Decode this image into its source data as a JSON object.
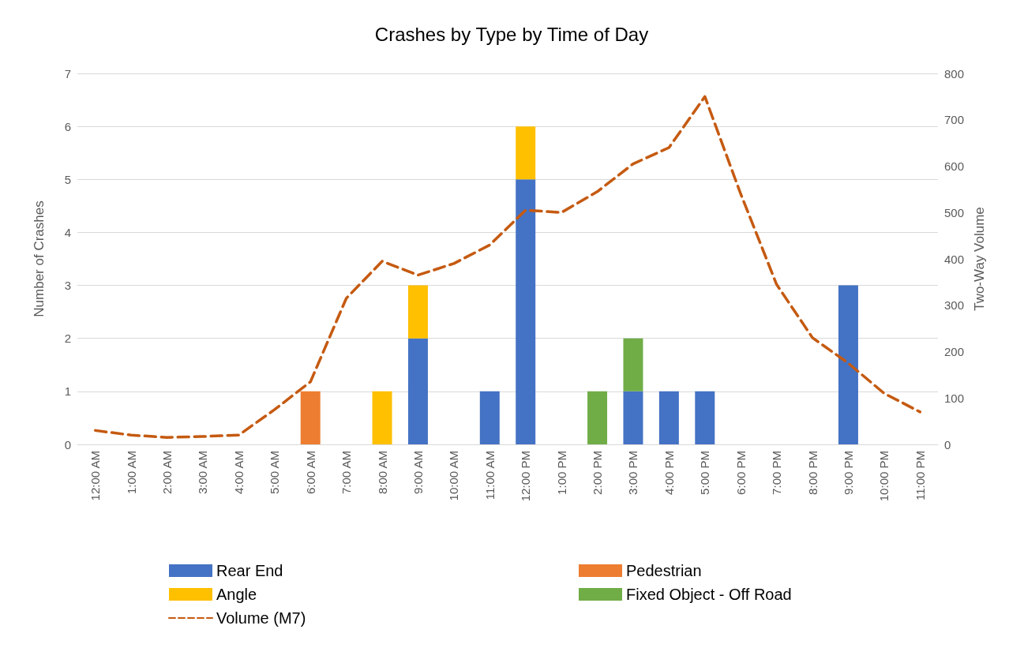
{
  "chart_data": {
    "type": "bar",
    "title": "Crashes by Type by Time of Day",
    "ylabel": "Number of Crashes",
    "y2label": "Two-Way Volume",
    "categories": [
      "12:00 AM",
      "1:00 AM",
      "2:00 AM",
      "3:00 AM",
      "4:00 AM",
      "5:00 AM",
      "6:00 AM",
      "7:00 AM",
      "8:00 AM",
      "9:00 AM",
      "10:00 AM",
      "11:00 AM",
      "12:00 PM",
      "1:00 PM",
      "2:00 PM",
      "3:00 PM",
      "4:00 PM",
      "5:00 PM",
      "6:00 PM",
      "7:00 PM",
      "8:00 PM",
      "9:00 PM",
      "10:00 PM",
      "11:00 PM"
    ],
    "stacked": true,
    "series": [
      {
        "name": "Rear End",
        "color": "#4472c4",
        "values": [
          null,
          null,
          null,
          null,
          null,
          null,
          null,
          null,
          null,
          2,
          null,
          1,
          5,
          null,
          null,
          1,
          1,
          1,
          null,
          null,
          null,
          3,
          null,
          null
        ]
      },
      {
        "name": "Pedestrian",
        "color": "#ed7d31",
        "values": [
          null,
          null,
          null,
          null,
          null,
          null,
          1,
          null,
          null,
          null,
          null,
          null,
          null,
          null,
          null,
          null,
          null,
          null,
          null,
          null,
          null,
          null,
          null,
          null
        ]
      },
      {
        "name": "Angle",
        "color": "#ffc000",
        "values": [
          null,
          null,
          null,
          null,
          null,
          null,
          null,
          null,
          1,
          1,
          null,
          null,
          1,
          null,
          null,
          null,
          null,
          null,
          null,
          null,
          null,
          null,
          null,
          null
        ]
      },
      {
        "name": "Fixed Object - Off Road",
        "color": "#70ad47",
        "values": [
          null,
          null,
          null,
          null,
          null,
          null,
          null,
          null,
          null,
          null,
          null,
          null,
          null,
          null,
          1,
          1,
          null,
          null,
          null,
          null,
          null,
          null,
          null,
          null
        ]
      },
      {
        "name": "Volume (M7)",
        "type": "line",
        "axis": "y2",
        "color": "#c55a11",
        "line_style": "dashed",
        "marker": "none",
        "values": [
          30,
          20,
          15,
          17,
          20,
          75,
          135,
          315,
          395,
          365,
          390,
          430,
          505,
          500,
          545,
          605,
          640,
          750,
          540,
          345,
          230,
          175,
          110,
          70
        ]
      }
    ],
    "ylim": [
      0,
      7
    ],
    "yticks": [
      0,
      1,
      2,
      3,
      4,
      5,
      6,
      7
    ],
    "y2lim": [
      0,
      800
    ],
    "y2ticks": [
      0,
      100,
      200,
      300,
      400,
      500,
      600,
      700,
      800
    ],
    "grid": "y",
    "legend": "bottom"
  }
}
